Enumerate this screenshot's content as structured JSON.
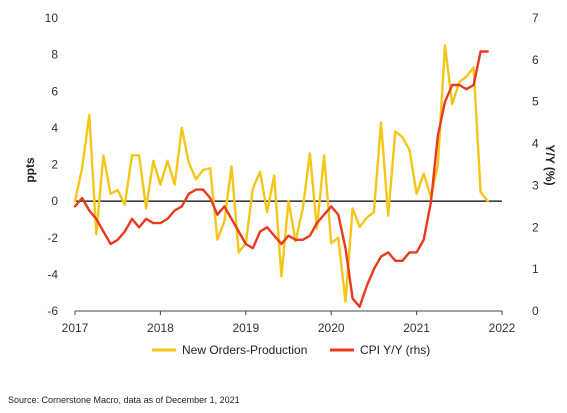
{
  "chart_data": {
    "type": "line",
    "ylabel": "ppts",
    "y2label": "Y/Y (%)",
    "x_ticks": [
      "2017",
      "2018",
      "2019",
      "2020",
      "2021",
      "2022"
    ],
    "x_tick_values": [
      2017,
      2018,
      2019,
      2020,
      2021,
      2022
    ],
    "xlim": [
      2017,
      2022
    ],
    "ylim": [
      -6,
      10
    ],
    "y_ticks": [
      -6,
      -4,
      -2,
      0,
      2,
      4,
      6,
      8,
      10
    ],
    "y2lim": [
      0,
      7
    ],
    "y2_ticks": [
      0,
      1,
      2,
      3,
      4,
      5,
      6,
      7
    ],
    "zero_line": 0,
    "legend_position": "bottom",
    "series": [
      {
        "name": "New Orders-Production",
        "axis": "left",
        "color": "#F5C518",
        "x": [
          2017.0,
          2017.083,
          2017.167,
          2017.25,
          2017.333,
          2017.417,
          2017.5,
          2017.583,
          2017.667,
          2017.75,
          2017.833,
          2017.917,
          2018.0,
          2018.083,
          2018.167,
          2018.25,
          2018.333,
          2018.417,
          2018.5,
          2018.583,
          2018.667,
          2018.75,
          2018.833,
          2018.917,
          2019.0,
          2019.083,
          2019.167,
          2019.25,
          2019.333,
          2019.417,
          2019.5,
          2019.583,
          2019.667,
          2019.75,
          2019.833,
          2019.917,
          2020.0,
          2020.083,
          2020.167,
          2020.25,
          2020.333,
          2020.417,
          2020.5,
          2020.583,
          2020.667,
          2020.75,
          2020.833,
          2020.917,
          2021.0,
          2021.083,
          2021.167,
          2021.25,
          2021.333,
          2021.417,
          2021.5,
          2021.583,
          2021.667,
          2021.75,
          2021.833
        ],
        "values": [
          0.0,
          1.8,
          4.7,
          -1.8,
          2.5,
          0.4,
          0.6,
          -0.2,
          2.5,
          2.5,
          -0.4,
          2.2,
          0.9,
          2.2,
          0.9,
          4.0,
          2.1,
          1.2,
          1.7,
          1.8,
          -2.1,
          -1.1,
          1.9,
          -2.8,
          -2.3,
          0.7,
          1.6,
          -0.6,
          1.4,
          -4.1,
          0.0,
          -2.2,
          -0.4,
          2.6,
          -1.5,
          2.5,
          -2.3,
          -2.0,
          -5.5,
          -0.4,
          -1.4,
          -0.9,
          -0.6,
          4.3,
          -0.8,
          3.8,
          3.5,
          2.8,
          0.4,
          1.5,
          0.2,
          2.0,
          8.5,
          5.3,
          6.5,
          6.8,
          7.3,
          0.5,
          0.0
        ]
      },
      {
        "name": "CPI Y/Y (rhs)",
        "axis": "right",
        "color": "#E83A1E",
        "x": [
          2017.0,
          2017.083,
          2017.167,
          2017.25,
          2017.333,
          2017.417,
          2017.5,
          2017.583,
          2017.667,
          2017.75,
          2017.833,
          2017.917,
          2018.0,
          2018.083,
          2018.167,
          2018.25,
          2018.333,
          2018.417,
          2018.5,
          2018.583,
          2018.667,
          2018.75,
          2018.833,
          2018.917,
          2019.0,
          2019.083,
          2019.167,
          2019.25,
          2019.333,
          2019.417,
          2019.5,
          2019.583,
          2019.667,
          2019.75,
          2019.833,
          2019.917,
          2020.0,
          2020.083,
          2020.167,
          2020.25,
          2020.333,
          2020.417,
          2020.5,
          2020.583,
          2020.667,
          2020.75,
          2020.833,
          2020.917,
          2021.0,
          2021.083,
          2021.167,
          2021.25,
          2021.333,
          2021.417,
          2021.5,
          2021.583,
          2021.667,
          2021.75,
          2021.833
        ],
        "values": [
          2.5,
          2.7,
          2.4,
          2.2,
          1.9,
          1.6,
          1.7,
          1.9,
          2.2,
          2.0,
          2.2,
          2.1,
          2.1,
          2.2,
          2.4,
          2.5,
          2.8,
          2.9,
          2.9,
          2.7,
          2.3,
          2.5,
          2.2,
          1.9,
          1.6,
          1.5,
          1.9,
          2.0,
          1.8,
          1.6,
          1.8,
          1.7,
          1.7,
          1.8,
          2.1,
          2.3,
          2.5,
          2.3,
          1.5,
          0.3,
          0.1,
          0.6,
          1.0,
          1.3,
          1.4,
          1.2,
          1.2,
          1.4,
          1.4,
          1.7,
          2.6,
          4.2,
          5.0,
          5.4,
          5.4,
          5.3,
          5.4,
          6.2,
          6.2
        ]
      }
    ]
  },
  "source_text": "Source: Cornerstone Macro, data as of December 1, 2021"
}
